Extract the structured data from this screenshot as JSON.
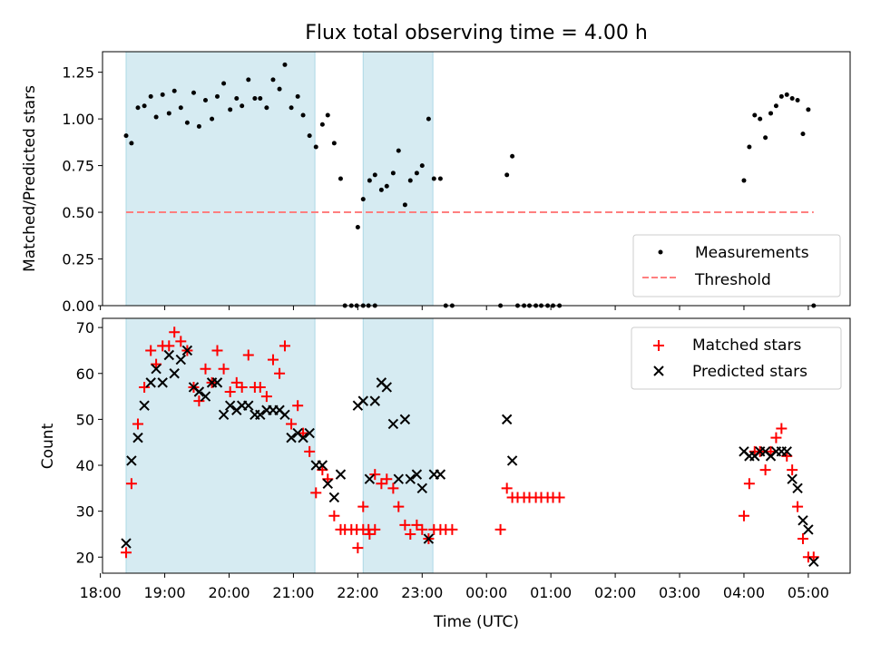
{
  "chart_data": [
    {
      "type": "scatter",
      "title": "Flux total observing time = 4.00 h",
      "ylabel": "Matched/Predicted stars",
      "xlabel": "",
      "x_axis_is_time": true,
      "xlim": [
        "18:02",
        "05:39"
      ],
      "ylim": [
        0,
        1.36
      ],
      "yticks": [
        0.0,
        0.25,
        0.5,
        0.75,
        1.0,
        1.25
      ],
      "ytick_labels": [
        "0.00",
        "0.25",
        "0.50",
        "0.75",
        "1.00",
        "1.25"
      ],
      "shaded_intervals": [
        [
          "18:24",
          "21:20"
        ],
        [
          "22:05",
          "23:10"
        ]
      ],
      "shade_color": "#add8e6",
      "legend_position": "lower-right",
      "threshold": {
        "name": "Threshold",
        "y": 0.5,
        "x_start": "18:24",
        "x_end": "05:05",
        "color": "#ff7f7f"
      },
      "series": [
        {
          "name": "Measurements",
          "color": "#000000",
          "points": [
            [
              "18:24",
              0.91
            ],
            [
              "18:29",
              0.87
            ],
            [
              "18:35",
              1.06
            ],
            [
              "18:41",
              1.07
            ],
            [
              "18:47",
              1.12
            ],
            [
              "18:52",
              1.01
            ],
            [
              "18:58",
              1.13
            ],
            [
              "19:04",
              1.03
            ],
            [
              "19:09",
              1.15
            ],
            [
              "19:15",
              1.06
            ],
            [
              "19:21",
              0.98
            ],
            [
              "19:27",
              1.14
            ],
            [
              "19:32",
              0.96
            ],
            [
              "19:38",
              1.1
            ],
            [
              "19:44",
              1.0
            ],
            [
              "19:49",
              1.12
            ],
            [
              "19:55",
              1.19
            ],
            [
              "20:01",
              1.05
            ],
            [
              "20:07",
              1.11
            ],
            [
              "20:12",
              1.07
            ],
            [
              "20:18",
              1.21
            ],
            [
              "20:24",
              1.11
            ],
            [
              "20:29",
              1.11
            ],
            [
              "20:35",
              1.06
            ],
            [
              "20:41",
              1.21
            ],
            [
              "20:47",
              1.16
            ],
            [
              "20:52",
              1.29
            ],
            [
              "20:58",
              1.06
            ],
            [
              "21:04",
              1.12
            ],
            [
              "21:09",
              1.02
            ],
            [
              "21:15",
              0.91
            ],
            [
              "21:21",
              0.85
            ],
            [
              "21:27",
              0.97
            ],
            [
              "21:32",
              1.02
            ],
            [
              "21:38",
              0.87
            ],
            [
              "21:44",
              0.68
            ],
            [
              "21:48",
              0.0
            ],
            [
              "21:54",
              0.0
            ],
            [
              "21:59",
              0.0
            ],
            [
              "22:05",
              0.0
            ],
            [
              "22:10",
              0.0
            ],
            [
              "22:16",
              0.0
            ],
            [
              "22:00",
              0.42
            ],
            [
              "22:05",
              0.57
            ],
            [
              "22:11",
              0.67
            ],
            [
              "22:16",
              0.7
            ],
            [
              "22:22",
              0.62
            ],
            [
              "22:27",
              0.64
            ],
            [
              "22:33",
              0.71
            ],
            [
              "22:38",
              0.83
            ],
            [
              "22:44",
              0.54
            ],
            [
              "22:49",
              0.67
            ],
            [
              "22:55",
              0.71
            ],
            [
              "23:00",
              0.75
            ],
            [
              "23:06",
              1.0
            ],
            [
              "23:11",
              0.68
            ],
            [
              "23:17",
              0.68
            ],
            [
              "23:22",
              0.0
            ],
            [
              "23:28",
              0.0
            ],
            [
              "00:13",
              0.0
            ],
            [
              "00:19",
              0.7
            ],
            [
              "00:24",
              0.8
            ],
            [
              "00:29",
              0.0
            ],
            [
              "00:35",
              0.0
            ],
            [
              "00:40",
              0.0
            ],
            [
              "00:46",
              0.0
            ],
            [
              "00:51",
              0.0
            ],
            [
              "00:57",
              0.0
            ],
            [
              "01:02",
              0.0
            ],
            [
              "01:08",
              0.0
            ],
            [
              "04:00",
              0.67
            ],
            [
              "04:05",
              0.85
            ],
            [
              "04:10",
              1.02
            ],
            [
              "04:15",
              1.0
            ],
            [
              "04:20",
              0.9
            ],
            [
              "04:25",
              1.03
            ],
            [
              "04:30",
              1.07
            ],
            [
              "04:35",
              1.12
            ],
            [
              "04:40",
              1.13
            ],
            [
              "04:45",
              1.11
            ],
            [
              "04:50",
              1.1
            ],
            [
              "04:55",
              0.92
            ],
            [
              "05:00",
              1.05
            ],
            [
              "05:05",
              0.0
            ]
          ]
        }
      ]
    },
    {
      "type": "scatter",
      "title": "",
      "ylabel": "Count",
      "xlabel": "Time (UTC)",
      "x_axis_is_time": true,
      "xlim": [
        "18:02",
        "05:39"
      ],
      "ylim": [
        16.5,
        72
      ],
      "yticks": [
        20,
        30,
        40,
        50,
        60,
        70
      ],
      "xtick_labels": [
        "18:00",
        "19:00",
        "20:00",
        "21:00",
        "22:00",
        "23:00",
        "00:00",
        "01:00",
        "02:00",
        "03:00",
        "04:00",
        "05:00"
      ],
      "shaded_intervals": [
        [
          "18:24",
          "21:20"
        ],
        [
          "22:05",
          "23:10"
        ]
      ],
      "shade_color": "#add8e6",
      "legend_position": "upper-right",
      "series": [
        {
          "name": "Matched stars",
          "marker": "plus",
          "color": "#ff0000",
          "points": [
            [
              "18:24",
              21
            ],
            [
              "18:29",
              36
            ],
            [
              "18:35",
              49
            ],
            [
              "18:41",
              57
            ],
            [
              "18:47",
              65
            ],
            [
              "18:52",
              62
            ],
            [
              "18:58",
              66
            ],
            [
              "19:04",
              66
            ],
            [
              "19:09",
              69
            ],
            [
              "19:15",
              67
            ],
            [
              "19:21",
              65
            ],
            [
              "19:27",
              57
            ],
            [
              "19:32",
              54
            ],
            [
              "19:38",
              61
            ],
            [
              "19:44",
              58
            ],
            [
              "19:49",
              65
            ],
            [
              "19:55",
              61
            ],
            [
              "20:01",
              56
            ],
            [
              "20:07",
              58
            ],
            [
              "20:12",
              57
            ],
            [
              "20:18",
              64
            ],
            [
              "20:24",
              57
            ],
            [
              "20:29",
              57
            ],
            [
              "20:35",
              55
            ],
            [
              "20:41",
              63
            ],
            [
              "20:47",
              60
            ],
            [
              "20:52",
              66
            ],
            [
              "20:58",
              49
            ],
            [
              "21:04",
              53
            ],
            [
              "21:09",
              47
            ],
            [
              "21:15",
              43
            ],
            [
              "21:21",
              34
            ],
            [
              "21:27",
              39
            ],
            [
              "21:32",
              37
            ],
            [
              "21:38",
              29
            ],
            [
              "21:44",
              26
            ],
            [
              "21:48",
              26
            ],
            [
              "21:54",
              26
            ],
            [
              "21:59",
              26
            ],
            [
              "22:05",
              26
            ],
            [
              "22:10",
              26
            ],
            [
              "22:16",
              26
            ],
            [
              "22:00",
              22
            ],
            [
              "22:05",
              31
            ],
            [
              "22:11",
              25
            ],
            [
              "22:16",
              38
            ],
            [
              "22:22",
              36
            ],
            [
              "22:27",
              37
            ],
            [
              "22:33",
              35
            ],
            [
              "22:38",
              31
            ],
            [
              "22:44",
              27
            ],
            [
              "22:49",
              25
            ],
            [
              "22:55",
              27
            ],
            [
              "23:00",
              26
            ],
            [
              "23:06",
              24
            ],
            [
              "23:11",
              26
            ],
            [
              "23:17",
              26
            ],
            [
              "23:22",
              26
            ],
            [
              "23:28",
              26
            ],
            [
              "00:13",
              26
            ],
            [
              "00:19",
              35
            ],
            [
              "00:24",
              33
            ],
            [
              "00:29",
              33
            ],
            [
              "00:35",
              33
            ],
            [
              "00:40",
              33
            ],
            [
              "00:46",
              33
            ],
            [
              "00:51",
              33
            ],
            [
              "00:57",
              33
            ],
            [
              "01:02",
              33
            ],
            [
              "01:08",
              33
            ],
            [
              "04:00",
              29
            ],
            [
              "04:05",
              36
            ],
            [
              "04:10",
              43
            ],
            [
              "04:15",
              43
            ],
            [
              "04:20",
              39
            ],
            [
              "04:25",
              43
            ],
            [
              "04:30",
              46
            ],
            [
              "04:35",
              48
            ],
            [
              "04:40",
              42
            ],
            [
              "04:45",
              39
            ],
            [
              "04:50",
              31
            ],
            [
              "04:55",
              24
            ],
            [
              "05:00",
              20
            ],
            [
              "05:05",
              20
            ]
          ]
        },
        {
          "name": "Predicted stars",
          "marker": "x",
          "color": "#000000",
          "points": [
            [
              "18:24",
              23
            ],
            [
              "18:29",
              41
            ],
            [
              "18:35",
              46
            ],
            [
              "18:41",
              53
            ],
            [
              "18:47",
              58
            ],
            [
              "18:52",
              61
            ],
            [
              "18:58",
              58
            ],
            [
              "19:04",
              64
            ],
            [
              "19:09",
              60
            ],
            [
              "19:15",
              63
            ],
            [
              "19:21",
              65
            ],
            [
              "19:27",
              57
            ],
            [
              "19:32",
              56
            ],
            [
              "19:38",
              55
            ],
            [
              "19:44",
              58
            ],
            [
              "19:49",
              58
            ],
            [
              "19:55",
              51
            ],
            [
              "20:01",
              53
            ],
            [
              "20:07",
              52
            ],
            [
              "20:12",
              53
            ],
            [
              "20:18",
              53
            ],
            [
              "20:24",
              51
            ],
            [
              "20:29",
              51
            ],
            [
              "20:35",
              52
            ],
            [
              "20:41",
              52
            ],
            [
              "20:47",
              52
            ],
            [
              "20:52",
              51
            ],
            [
              "20:58",
              46
            ],
            [
              "21:04",
              47
            ],
            [
              "21:09",
              46
            ],
            [
              "21:15",
              47
            ],
            [
              "21:21",
              40
            ],
            [
              "21:27",
              40
            ],
            [
              "21:32",
              36
            ],
            [
              "21:38",
              33
            ],
            [
              "21:44",
              38
            ],
            [
              "22:00",
              53
            ],
            [
              "22:05",
              54
            ],
            [
              "22:11",
              37
            ],
            [
              "22:16",
              54
            ],
            [
              "22:22",
              58
            ],
            [
              "22:27",
              57
            ],
            [
              "22:33",
              49
            ],
            [
              "22:38",
              37
            ],
            [
              "22:44",
              50
            ],
            [
              "22:49",
              37
            ],
            [
              "22:55",
              38
            ],
            [
              "23:00",
              35
            ],
            [
              "23:06",
              24
            ],
            [
              "23:11",
              38
            ],
            [
              "23:17",
              38
            ],
            [
              "00:19",
              50
            ],
            [
              "00:24",
              41
            ],
            [
              "04:00",
              43
            ],
            [
              "04:05",
              42
            ],
            [
              "04:10",
              42
            ],
            [
              "04:15",
              43
            ],
            [
              "04:20",
              43
            ],
            [
              "04:25",
              42
            ],
            [
              "04:30",
              43
            ],
            [
              "04:35",
              43
            ],
            [
              "04:40",
              43
            ],
            [
              "04:45",
              37
            ],
            [
              "04:50",
              35
            ],
            [
              "04:55",
              28
            ],
            [
              "05:00",
              26
            ],
            [
              "05:05",
              19
            ]
          ]
        }
      ]
    }
  ]
}
